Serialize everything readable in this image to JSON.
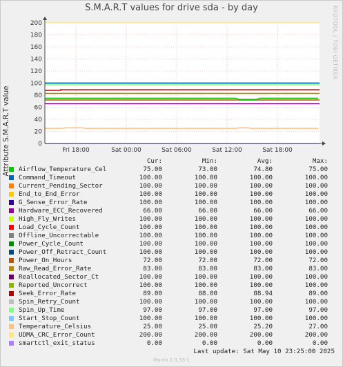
{
  "title": "S.M.A.R.T values for drive sda - by day",
  "watermark": "RRDTOOL / TOBI OETIKER",
  "footer": {
    "last_update": "Last update:  Sat May 10 23:25:00 2025",
    "munin": "Munin 2.0.33-1"
  },
  "legend_header": {
    "cur": "Cur:",
    "min": "Min:",
    "avg": "Avg:",
    "max": "Max:"
  },
  "chart_data": {
    "type": "line",
    "ylabel": "Attribute S.M.A.R.T value",
    "ylim": [
      0,
      200
    ],
    "yticks": [
      0,
      20,
      40,
      60,
      80,
      100,
      120,
      140,
      160,
      180,
      200
    ],
    "xticks": [
      "Fri 18:00",
      "Sat 00:00",
      "Sat 06:00",
      "Sat 12:00",
      "Sat 18:00"
    ],
    "grid": true,
    "series": [
      {
        "name": "Airflow_Temperature_Cel",
        "color": "#00cc00",
        "cur": "75.00",
        "min": "73.00",
        "avg": "74.80",
        "max": "75.00",
        "level": 75
      },
      {
        "name": "Command_Timeout",
        "color": "#0066b3",
        "cur": "100.00",
        "min": "100.00",
        "avg": "100.00",
        "max": "100.00",
        "level": 100
      },
      {
        "name": "Current_Pending_Sector",
        "color": "#ff8000",
        "cur": "100.00",
        "min": "100.00",
        "avg": "100.00",
        "max": "100.00",
        "level": 100
      },
      {
        "name": "End_to_End_Error",
        "color": "#ffcc00",
        "cur": "100.00",
        "min": "100.00",
        "avg": "100.00",
        "max": "100.00",
        "level": 100
      },
      {
        "name": "G_Sense_Error_Rate",
        "color": "#330099",
        "cur": "100.00",
        "min": "100.00",
        "avg": "100.00",
        "max": "100.00",
        "level": 100
      },
      {
        "name": "Hardware_ECC_Recovered",
        "color": "#990099",
        "cur": "66.00",
        "min": "66.00",
        "avg": "66.00",
        "max": "66.00",
        "level": 66
      },
      {
        "name": "High_Fly_Writes",
        "color": "#ccff00",
        "cur": "100.00",
        "min": "100.00",
        "avg": "100.00",
        "max": "100.00",
        "level": 100
      },
      {
        "name": "Load_Cycle_Count",
        "color": "#ff0000",
        "cur": "100.00",
        "min": "100.00",
        "avg": "100.00",
        "max": "100.00",
        "level": 100
      },
      {
        "name": "Offline_Uncorrectable",
        "color": "#808080",
        "cur": "100.00",
        "min": "100.00",
        "avg": "100.00",
        "max": "100.00",
        "level": 100
      },
      {
        "name": "Power_Cycle_Count",
        "color": "#008f00",
        "cur": "100.00",
        "min": "100.00",
        "avg": "100.00",
        "max": "100.00",
        "level": 100
      },
      {
        "name": "Power_Off_Retract_Count",
        "color": "#00487d",
        "cur": "100.00",
        "min": "100.00",
        "avg": "100.00",
        "max": "100.00",
        "level": 100
      },
      {
        "name": "Power_On_Hours",
        "color": "#b35a00",
        "cur": "72.00",
        "min": "72.00",
        "avg": "72.00",
        "max": "72.00",
        "level": 72
      },
      {
        "name": "Raw_Read_Error_Rate",
        "color": "#b38f00",
        "cur": "83.00",
        "min": "83.00",
        "avg": "83.00",
        "max": "83.00",
        "level": 83
      },
      {
        "name": "Reallocated_Sector_Ct",
        "color": "#6b006b",
        "cur": "100.00",
        "min": "100.00",
        "avg": "100.00",
        "max": "100.00",
        "level": 100
      },
      {
        "name": "Reported_Uncorrect",
        "color": "#8fb300",
        "cur": "100.00",
        "min": "100.00",
        "avg": "100.00",
        "max": "100.00",
        "level": 100
      },
      {
        "name": "Seek_Error_Rate",
        "color": "#b30000",
        "cur": "89.00",
        "min": "88.00",
        "avg": "88.94",
        "max": "89.00",
        "level": 89
      },
      {
        "name": "Spin_Retry_Count",
        "color": "#bebebe",
        "cur": "100.00",
        "min": "100.00",
        "avg": "100.00",
        "max": "100.00",
        "level": 100
      },
      {
        "name": "Spin_Up_Time",
        "color": "#80ff80",
        "cur": "97.00",
        "min": "97.00",
        "avg": "97.00",
        "max": "97.00",
        "level": 97
      },
      {
        "name": "Start_Stop_Count",
        "color": "#80c9ff",
        "cur": "100.00",
        "min": "100.00",
        "avg": "100.00",
        "max": "100.00",
        "level": 100
      },
      {
        "name": "Temperature_Celsius",
        "color": "#ffc080",
        "cur": "25.00",
        "min": "25.00",
        "avg": "25.20",
        "max": "27.00",
        "level": 25
      },
      {
        "name": "UDMA_CRC_Error_Count",
        "color": "#ffe680",
        "cur": "200.00",
        "min": "200.00",
        "avg": "200.00",
        "max": "200.00",
        "level": 200
      },
      {
        "name": "smartctl_exit_status",
        "color": "#aa80ff",
        "cur": "0.00",
        "min": "0.00",
        "avg": "0.00",
        "max": "0.00",
        "level": 0
      }
    ]
  }
}
